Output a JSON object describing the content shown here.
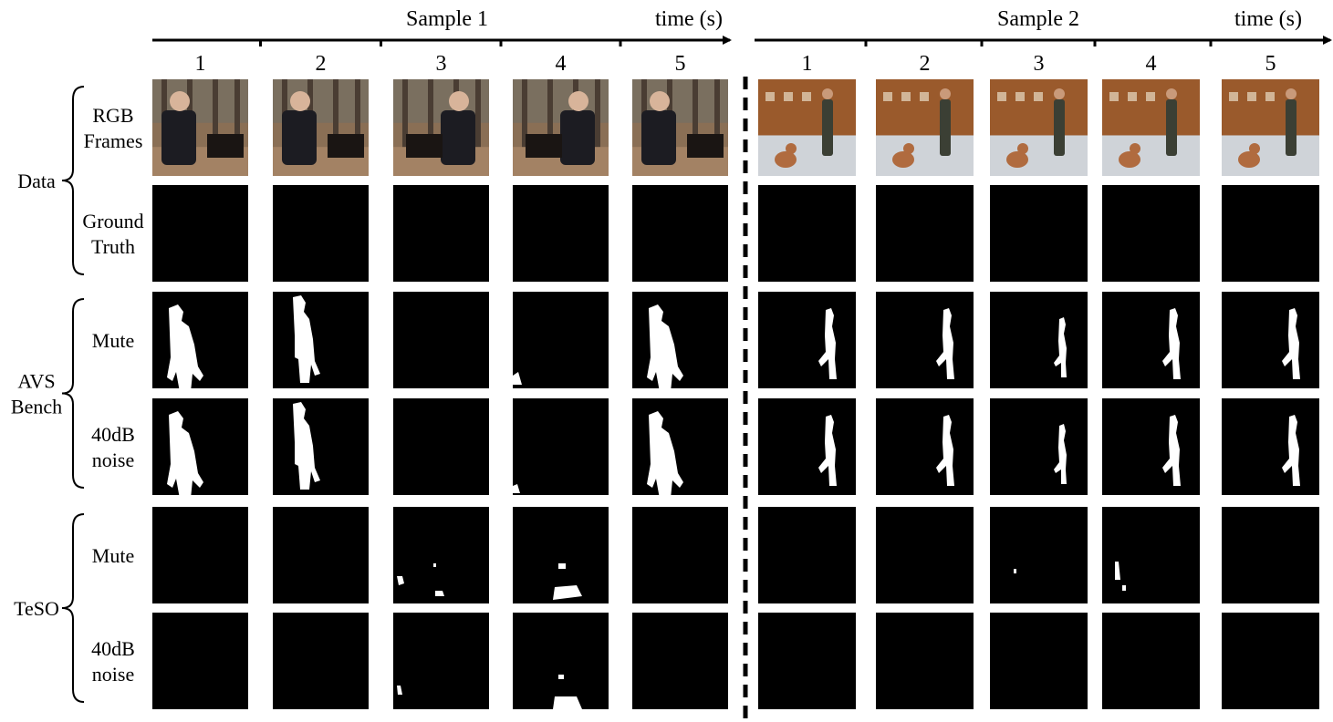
{
  "samples": [
    {
      "title": "Sample 1",
      "time_label": "time (s)",
      "ticks": [
        "1",
        "2",
        "3",
        "4",
        "5"
      ]
    },
    {
      "title": "Sample 2",
      "time_label": "time (s)",
      "ticks": [
        "1",
        "2",
        "3",
        "4",
        "5"
      ]
    }
  ],
  "groups": [
    {
      "label": [
        "Data"
      ],
      "rows": [
        [
          "RGB",
          "Frames"
        ],
        [
          "Ground",
          "Truth"
        ]
      ]
    },
    {
      "label": [
        "AVS",
        "Bench"
      ],
      "rows": [
        [
          "Mute"
        ],
        [
          "40dB",
          "noise"
        ]
      ]
    },
    {
      "label": [
        "TeSO"
      ],
      "rows": [
        [
          "Mute"
        ],
        [
          "40dB",
          "noise"
        ]
      ]
    }
  ],
  "colors": {
    "mask_background": "#000000",
    "mask_foreground": "#ffffff",
    "rgb_sample1_forest": "#8a6f55",
    "rgb_sample2_wall": "#9a5a2c"
  }
}
